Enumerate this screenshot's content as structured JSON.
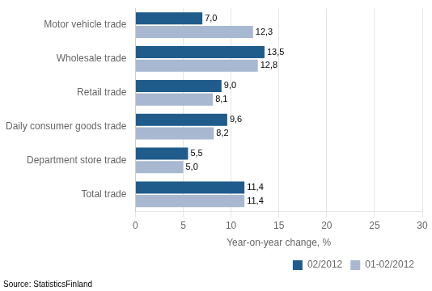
{
  "chart_data": {
    "type": "bar",
    "orientation": "horizontal",
    "categories": [
      "Total trade",
      "Department store trade",
      "Daily consumer goods trade",
      "Retail trade",
      "Wholesale trade",
      "Motor vehicle trade"
    ],
    "series": [
      {
        "name": "02/2012",
        "color": "#1F5C8B",
        "values": [
          11.4,
          5.5,
          9.6,
          9.0,
          13.5,
          7.0
        ],
        "value_labels": [
          "11,4",
          "5,5",
          "9,6",
          "9,0",
          "13,5",
          "7,0"
        ]
      },
      {
        "name": "01-02/2012",
        "color": "#A8B8D0",
        "values": [
          11.4,
          5.0,
          8.2,
          8.1,
          12.8,
          12.3
        ],
        "value_labels": [
          "11,4",
          "5,0",
          "8,2",
          "8,1",
          "12,8",
          "12,3"
        ]
      }
    ],
    "xlabel": "Year-on-year change, %",
    "xlim": [
      0,
      30
    ],
    "xticks": [
      0,
      5,
      10,
      15,
      20,
      25,
      30
    ],
    "grid": true,
    "legend": "lower right",
    "data_labels": true,
    "annotations": [
      "Source: StatisticsFinland"
    ]
  }
}
